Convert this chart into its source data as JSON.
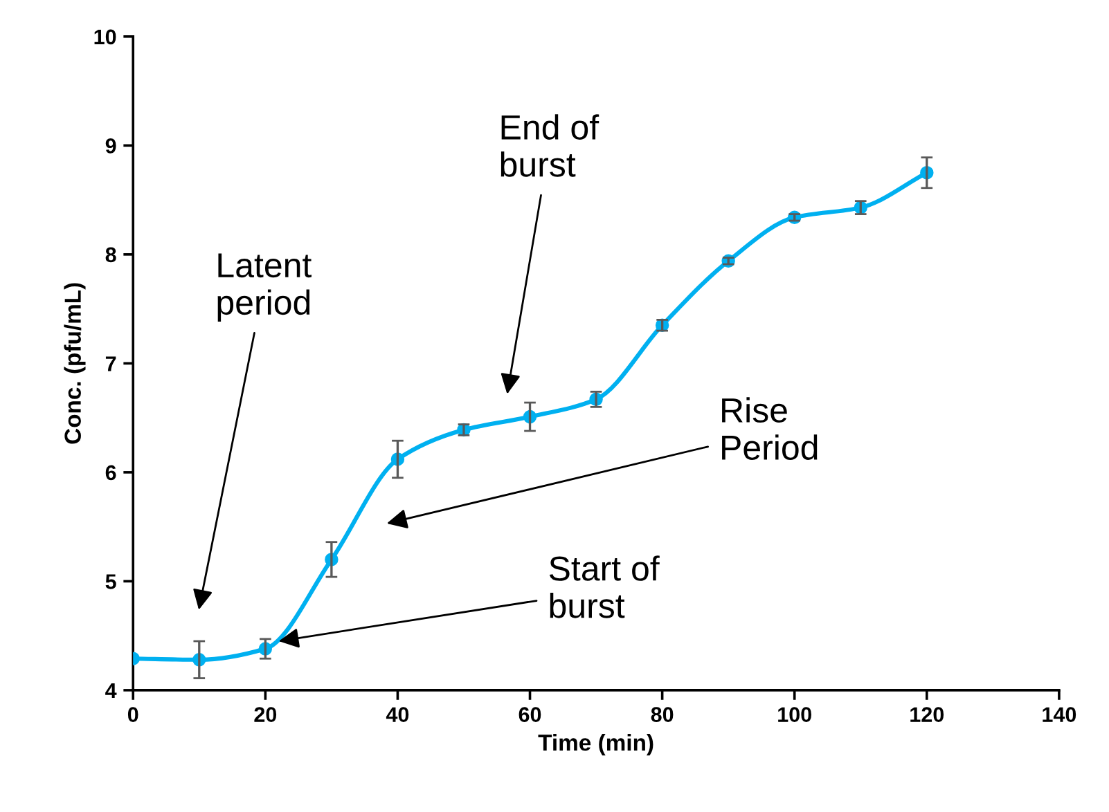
{
  "chart_data": {
    "type": "line",
    "xlabel": "Time (min)",
    "ylabel": "Conc. (pfu/mL)",
    "x": [
      0,
      10,
      20,
      30,
      40,
      50,
      60,
      70,
      80,
      90,
      100,
      110,
      120
    ],
    "series": [
      {
        "color": "#00b0f0",
        "values": [
          4.29,
          4.28,
          4.38,
          5.2,
          6.12,
          6.39,
          6.51,
          6.67,
          7.35,
          7.94,
          8.34,
          8.43,
          8.75
        ],
        "errors": [
          null,
          0.17,
          0.09,
          0.16,
          0.17,
          0.05,
          0.13,
          0.07,
          0.05,
          0.03,
          0.03,
          0.06,
          0.14
        ]
      }
    ],
    "xlim": [
      0,
      140
    ],
    "xticks": [
      0,
      20,
      40,
      60,
      80,
      100,
      120,
      140
    ],
    "ylim": [
      4,
      10
    ],
    "yticks": [
      4,
      5,
      6,
      7,
      8,
      9,
      10
    ],
    "marker": "circle",
    "line_style": "solid",
    "grid": false,
    "legend": false,
    "annotations": [
      "Latent\nperiod",
      "End of\nburst",
      "Rise\nPeriod",
      {
        "text": "Start of\nburst",
        "x": 22,
        "y": 4.45
      }
    ]
  }
}
